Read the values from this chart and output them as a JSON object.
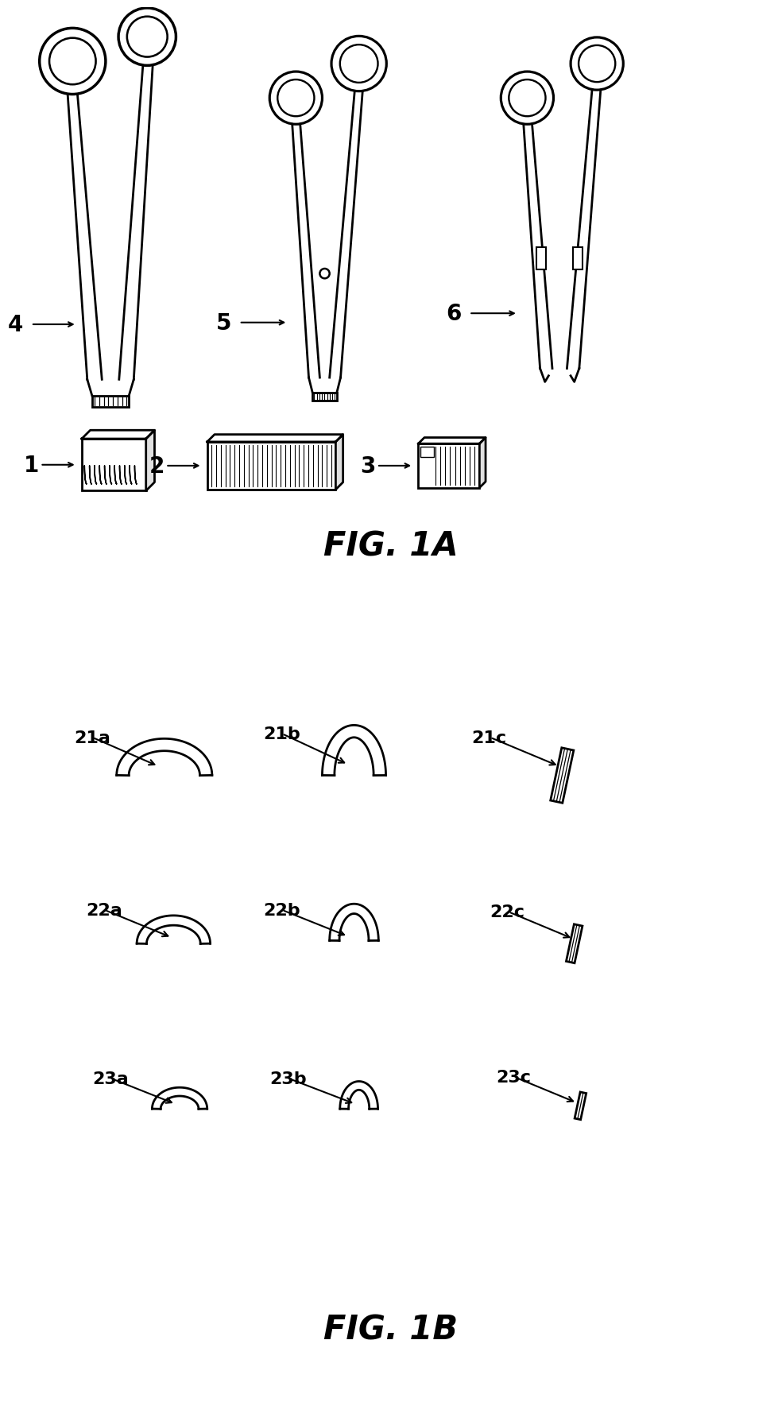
{
  "fig_width": 12.4,
  "fig_height": 22.66,
  "bg_color": "#ffffff",
  "line_color": "#000000",
  "fig1a_title": "FIG. 1A",
  "fig1b_title": "FIG. 1B"
}
